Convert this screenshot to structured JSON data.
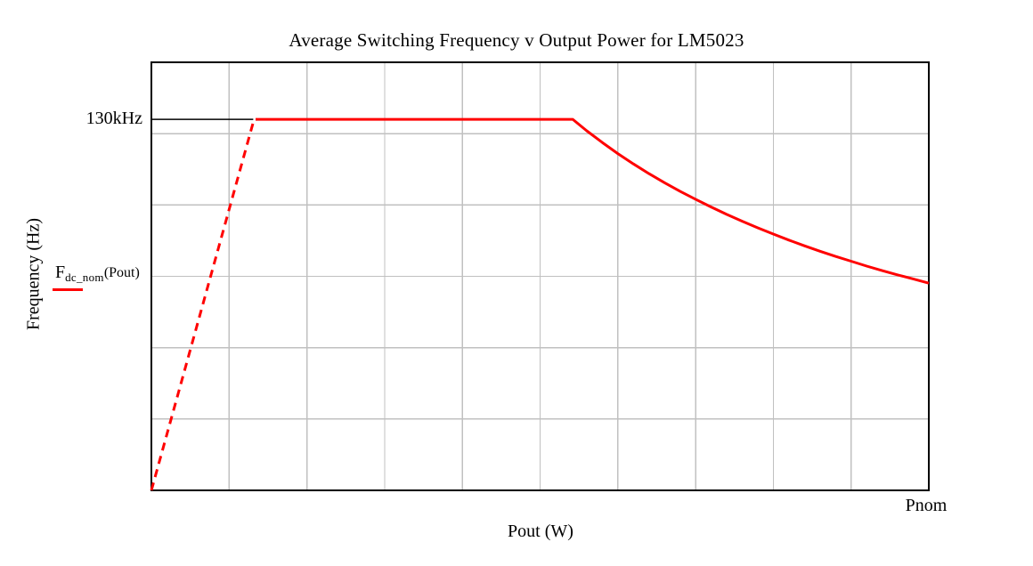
{
  "chart": {
    "title": "Average Switching Frequency v Output Power for LM5023",
    "xlabel": "Pout (W)",
    "ylabel": "Frequency (Hz)",
    "x_end_tick_label": "Pnom",
    "marker_label": "130kHz"
  },
  "legend": {
    "symbol": "F",
    "subscript": "dc_nom",
    "argument": "(Pout)"
  },
  "colors": {
    "trace": "#ff0000",
    "grid": "#c0c0c0",
    "axis": "#000000",
    "marker_line": "#000000",
    "background": "#ffffff"
  },
  "chart_data": {
    "type": "line",
    "title": "Average Switching Frequency v Output Power for LM5023",
    "xlabel": "Pout (W)",
    "ylabel": "Frequency (Hz)",
    "grid": true,
    "legend_position": "left-middle",
    "x_axis": {
      "min": 0,
      "max": 1,
      "unit": "fraction of Pnom",
      "divisions": 10,
      "end_tick_label": "Pnom"
    },
    "y_axis": {
      "min": 0,
      "max": 150000,
      "unit": "Hz",
      "divisions": 6
    },
    "marker": {
      "label": "130kHz",
      "value": 130000,
      "extends_to_x": 0.131
    },
    "series": [
      {
        "name": "Fdc_nom(Pout)",
        "color": "#ff0000",
        "segments": [
          {
            "style": "dashed",
            "points": [
              [
                0,
                0
              ],
              [
                0.131,
                129000
              ]
            ]
          },
          {
            "style": "solid",
            "points": [
              [
                0.134,
                130000
              ],
              [
                0.542,
                130000
              ],
              [
                0.56,
                126000
              ],
              [
                0.58,
                121900
              ],
              [
                0.6,
                118000
              ],
              [
                0.62,
                114400
              ],
              [
                0.64,
                111000
              ],
              [
                0.66,
                107800
              ],
              [
                0.68,
                104800
              ],
              [
                0.7,
                102000
              ],
              [
                0.72,
                99300
              ],
              [
                0.74,
                96700
              ],
              [
                0.76,
                94300
              ],
              [
                0.78,
                92000
              ],
              [
                0.8,
                89800
              ],
              [
                0.82,
                87700
              ],
              [
                0.84,
                85700
              ],
              [
                0.86,
                83800
              ],
              [
                0.88,
                82000
              ],
              [
                0.9,
                80300
              ],
              [
                0.92,
                78600
              ],
              [
                0.94,
                77000
              ],
              [
                0.96,
                75500
              ],
              [
                0.98,
                74100
              ],
              [
                1.0,
                72600
              ]
            ]
          }
        ]
      }
    ]
  }
}
